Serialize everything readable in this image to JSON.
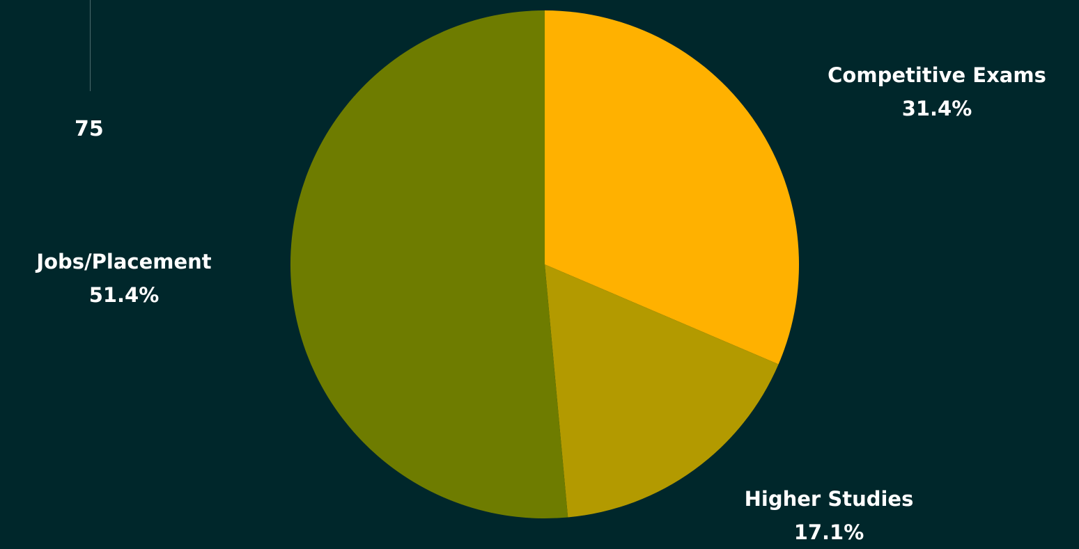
{
  "sidebar": {
    "number": "75"
  },
  "chart_data": {
    "type": "pie",
    "title": "",
    "slices": [
      {
        "label": "Competitive Exams",
        "value": 31.4,
        "display": "31.4%",
        "color": "#ffb100"
      },
      {
        "label": "Higher Studies",
        "value": 17.1,
        "display": "17.1%",
        "color": "#b39a00"
      },
      {
        "label": "Jobs/Placement",
        "value": 51.4,
        "display": "51.4%",
        "color": "#6e7c00"
      }
    ],
    "start_angle": "12 o'clock",
    "direction": "clockwise",
    "legend": "none",
    "data_labels": "outside"
  }
}
